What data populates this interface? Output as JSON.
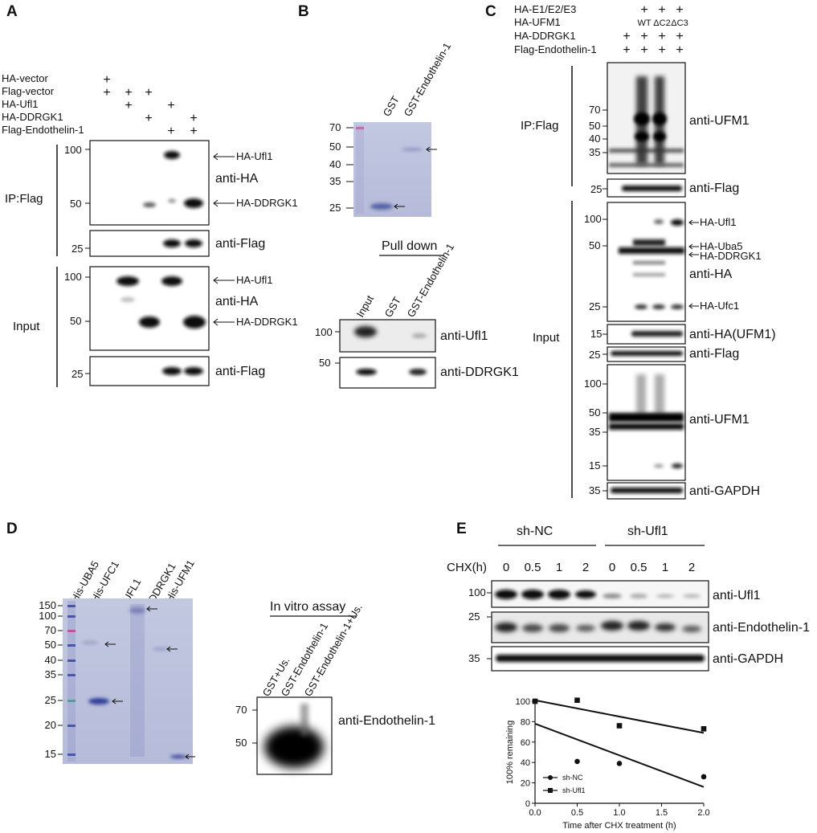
{
  "panels": {
    "A": {
      "letter": "A",
      "conditions": [
        {
          "label": "HA-vector",
          "signs": [
            "+",
            "",
            "",
            "",
            ""
          ]
        },
        {
          "label": "Flag-vector",
          "signs": [
            "+",
            "+",
            "+",
            "",
            ""
          ]
        },
        {
          "label": "HA-Ufl1",
          "signs": [
            "",
            "+",
            "",
            "+",
            ""
          ]
        },
        {
          "label": "HA-DDRGK1",
          "signs": [
            "",
            "",
            "+",
            "",
            "+"
          ]
        },
        {
          "label": "Flag-Endothelin-1",
          "signs": [
            "",
            "",
            "",
            "+",
            "+"
          ]
        }
      ],
      "ip_label": "IP:Flag",
      "input_label": "Input",
      "blots": [
        {
          "antibody": "anti-HA",
          "markers": [
            "100",
            "50"
          ],
          "bands": [
            "HA-Ufl1",
            "HA-DDRGK1"
          ]
        },
        {
          "antibody": "anti-Flag",
          "markers": [
            "25"
          ],
          "bands": []
        },
        {
          "antibody": "anti-HA",
          "markers": [
            "100",
            "50"
          ],
          "bands": [
            "HA-Ufl1",
            "HA-DDRGK1"
          ]
        },
        {
          "antibody": "anti-Flag",
          "markers": [
            "25"
          ],
          "bands": []
        }
      ]
    },
    "B": {
      "letter": "B",
      "gel_lanes": [
        "GST",
        "GST-Endothelin-1"
      ],
      "gel_markers": [
        "70",
        "50",
        "40",
        "35",
        "25"
      ],
      "pulldown_title": "Pull down",
      "pulldown_lanes": [
        "Input",
        "GST",
        "GST-Endothelin-1"
      ],
      "blots": [
        {
          "antibody": "anti-Ufl1",
          "markers": [
            "100"
          ]
        },
        {
          "antibody": "anti-DDRGK1",
          "markers": [
            "50"
          ]
        }
      ]
    },
    "C": {
      "letter": "C",
      "conditions": [
        {
          "label": "HA-E1/E2/E3",
          "signs": [
            "",
            "",
            "+",
            "+",
            "+"
          ]
        },
        {
          "label": "HA-UFM1",
          "signs": [
            "",
            "",
            "WT",
            "ΔC2",
            "ΔC3"
          ]
        },
        {
          "label": "HA-DDRGK1",
          "signs": [
            "",
            "+",
            "+",
            "+",
            "+"
          ]
        },
        {
          "label": "Flag-Endothelin-1",
          "signs": [
            "+",
            "+",
            "+",
            "+",
            "+"
          ]
        }
      ],
      "ip_label": "IP:Flag",
      "input_label": "Input",
      "blots": [
        {
          "antibody": "anti-UFM1",
          "markers": [
            "70",
            "50",
            "40",
            "35"
          ]
        },
        {
          "antibody": "anti-Flag",
          "markers": [
            "25"
          ]
        },
        {
          "antibody": "anti-HA",
          "markers": [
            "100",
            "50",
            "25"
          ],
          "bands": [
            "HA-Ufl1",
            "HA-Uba5",
            "HA-DDRGK1",
            "HA-Ufc1"
          ]
        },
        {
          "antibody": "anti-HA(UFM1)",
          "markers": [
            "15"
          ]
        },
        {
          "antibody": "anti-Flag",
          "markers": [
            "25"
          ]
        },
        {
          "antibody": "anti-UFM1",
          "markers": [
            "100",
            "50",
            "35",
            "15"
          ]
        },
        {
          "antibody": "anti-GAPDH",
          "markers": [
            "35"
          ]
        }
      ]
    },
    "D": {
      "letter": "D",
      "gel_lanes": [
        "His-UBA5",
        "His-UFC1",
        "UFL1",
        "DDRGK1",
        "His-UFM1"
      ],
      "gel_markers": [
        "150",
        "100",
        "70",
        "50",
        "40",
        "35",
        "25",
        "20",
        "15"
      ],
      "assay_title": "In vitro assay",
      "assay_lanes": [
        "GST+Us.",
        "GST-Endothelin-1",
        "GST-Endothelin-1+Us."
      ],
      "assay_markers": [
        "70",
        "50"
      ],
      "assay_antibody": "anti-Endothelin-1"
    },
    "E": {
      "letter": "E",
      "groups": [
        "sh-NC",
        "sh-Ufl1"
      ],
      "chx_label": "CHX(h)",
      "timepoints": [
        "0",
        "0.5",
        "1",
        "2",
        "0",
        "0.5",
        "1",
        "2"
      ],
      "blots": [
        {
          "antibody": "anti-Ufl1",
          "markers": [
            "100"
          ]
        },
        {
          "antibody": "anti-Endothelin-1",
          "markers": [
            "25"
          ]
        },
        {
          "antibody": "anti-GAPDH",
          "markers": [
            "35"
          ]
        }
      ]
    }
  },
  "chart_data": {
    "type": "scatter",
    "title": "",
    "xlabel": "Time after CHX treatment (h)",
    "ylabel": "100% remaining",
    "xlim": [
      0,
      2.0
    ],
    "ylim": [
      0,
      100
    ],
    "xticks": [
      "0.0",
      "0.5",
      "1.0",
      "1.5",
      "2.0"
    ],
    "yticks": [
      "0",
      "20",
      "40",
      "60",
      "80",
      "100"
    ],
    "legend_position": "bottom-left",
    "series": [
      {
        "name": "sh-NC",
        "marker": "circle",
        "x": [
          0,
          0.5,
          1,
          2
        ],
        "y": [
          100,
          41,
          39,
          26
        ],
        "fit": [
          78,
          16
        ]
      },
      {
        "name": "sh-Ufl1",
        "marker": "square",
        "x": [
          0,
          0.5,
          1,
          2
        ],
        "y": [
          100,
          101,
          76,
          73
        ],
        "fit": [
          101,
          69
        ]
      }
    ]
  }
}
